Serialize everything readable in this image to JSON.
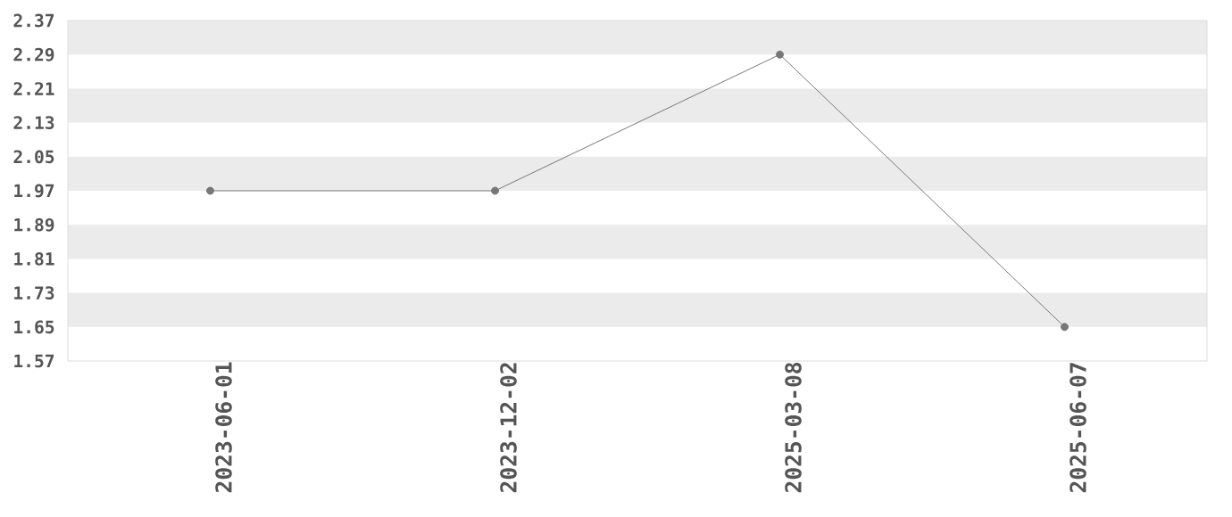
{
  "chart_data": {
    "type": "line",
    "categories": [
      "2023-06-01",
      "2023-12-02",
      "2025-03-08",
      "2025-06-07"
    ],
    "series": [
      {
        "color": "#777777",
        "values": [
          1.97,
          1.97,
          2.29,
          1.65
        ]
      }
    ],
    "ylim": [
      1.57,
      2.37
    ],
    "yticks": [
      1.57,
      1.65,
      1.73,
      1.81,
      1.89,
      1.97,
      2.05,
      2.13,
      2.21,
      2.29,
      2.37
    ],
    "bands": [
      {
        "axis": "y",
        "from": 2.29,
        "to": 2.37,
        "color": "#ebebeb"
      },
      {
        "axis": "y",
        "from": 2.13,
        "to": 2.21,
        "color": "#ebebeb"
      },
      {
        "axis": "y",
        "from": 1.97,
        "to": 2.05,
        "color": "#ebebeb"
      },
      {
        "axis": "y",
        "from": 1.81,
        "to": 1.89,
        "color": "#ebebeb"
      },
      {
        "axis": "y",
        "from": 1.65,
        "to": 1.73,
        "color": "#ebebeb"
      }
    ],
    "marker": "circle",
    "line_style": "solid"
  }
}
